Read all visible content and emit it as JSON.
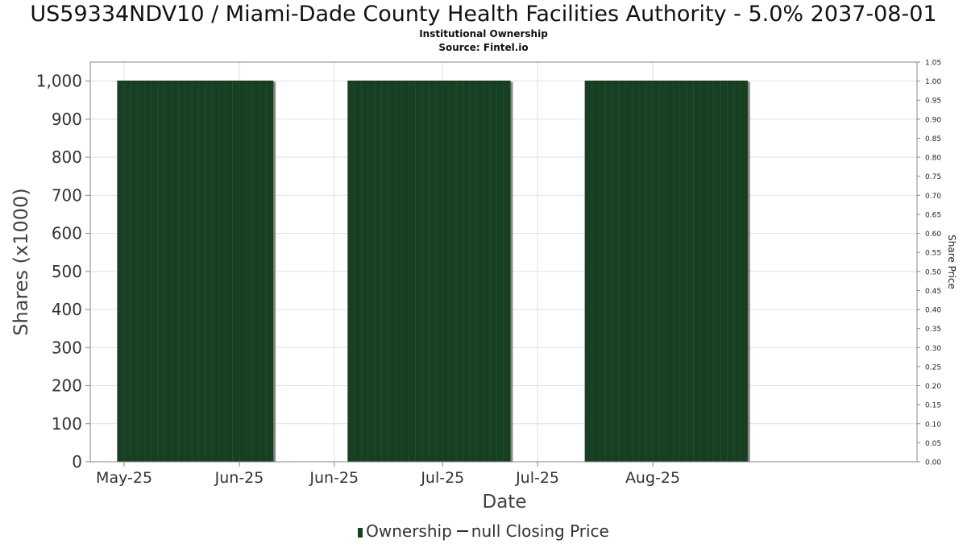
{
  "header": {
    "title": "US59334NDV10 / Miami-Dade County Health Facilities Authority - 5.0% 2037-08-01",
    "subtitle": "Institutional Ownership",
    "source": "Source: Fintel.io"
  },
  "legend": {
    "ownership_label": "Ownership",
    "price_label": "null Closing Price"
  },
  "colors": {
    "bar_fill": "#173f22",
    "bar_shadow": "#888888",
    "grid": "#e0e0e0",
    "axis": "#888888"
  },
  "chart_data": {
    "type": "bar",
    "title": "US59334NDV10 / Miami-Dade County Health Facilities Authority - 5.0% 2037-08-01",
    "subtitle": "Institutional Ownership",
    "xlabel": "Date",
    "ylabel": "Shares (x1000)",
    "y2label": "Share Price",
    "ylim": [
      0,
      1050
    ],
    "y2lim": [
      0,
      1.05
    ],
    "yticks": [
      0,
      100,
      200,
      300,
      400,
      500,
      600,
      700,
      800,
      900,
      1000
    ],
    "ytick_labels": [
      "0",
      "100",
      "200",
      "300",
      "400",
      "500",
      "600",
      "700",
      "800",
      "900",
      "1,000"
    ],
    "y2ticks": [
      "0.00",
      "0.05",
      "0.10",
      "0.15",
      "0.20",
      "0.25",
      "0.30",
      "0.35",
      "0.40",
      "0.45",
      "0.50",
      "0.55",
      "0.60",
      "0.65",
      "0.70",
      "0.75",
      "0.80",
      "0.85",
      "0.90",
      "0.95",
      "1.00",
      "1.05"
    ],
    "xlim": [
      "2025-05-10",
      "2025-09-09"
    ],
    "xticks": [
      {
        "date": "2025-05-15",
        "label": "May-25"
      },
      {
        "date": "2025-06-01",
        "label": "Jun-25"
      },
      {
        "date": "2025-06-15",
        "label": "Jun-25"
      },
      {
        "date": "2025-07-01",
        "label": "Jul-25"
      },
      {
        "date": "2025-07-15",
        "label": "Jul-25"
      },
      {
        "date": "2025-08-01",
        "label": "Aug-25"
      }
    ],
    "grid": true,
    "legend_position": "bottom",
    "series": [
      {
        "name": "Ownership",
        "periods": [
          {
            "start": "2025-05-14",
            "end": "2025-06-06",
            "value": 1000
          },
          {
            "start": "2025-06-17",
            "end": "2025-07-11",
            "value": 1000
          },
          {
            "start": "2025-07-22",
            "end": "2025-08-15",
            "value": 1000
          }
        ]
      },
      {
        "name": "null Closing Price",
        "values": []
      }
    ]
  }
}
